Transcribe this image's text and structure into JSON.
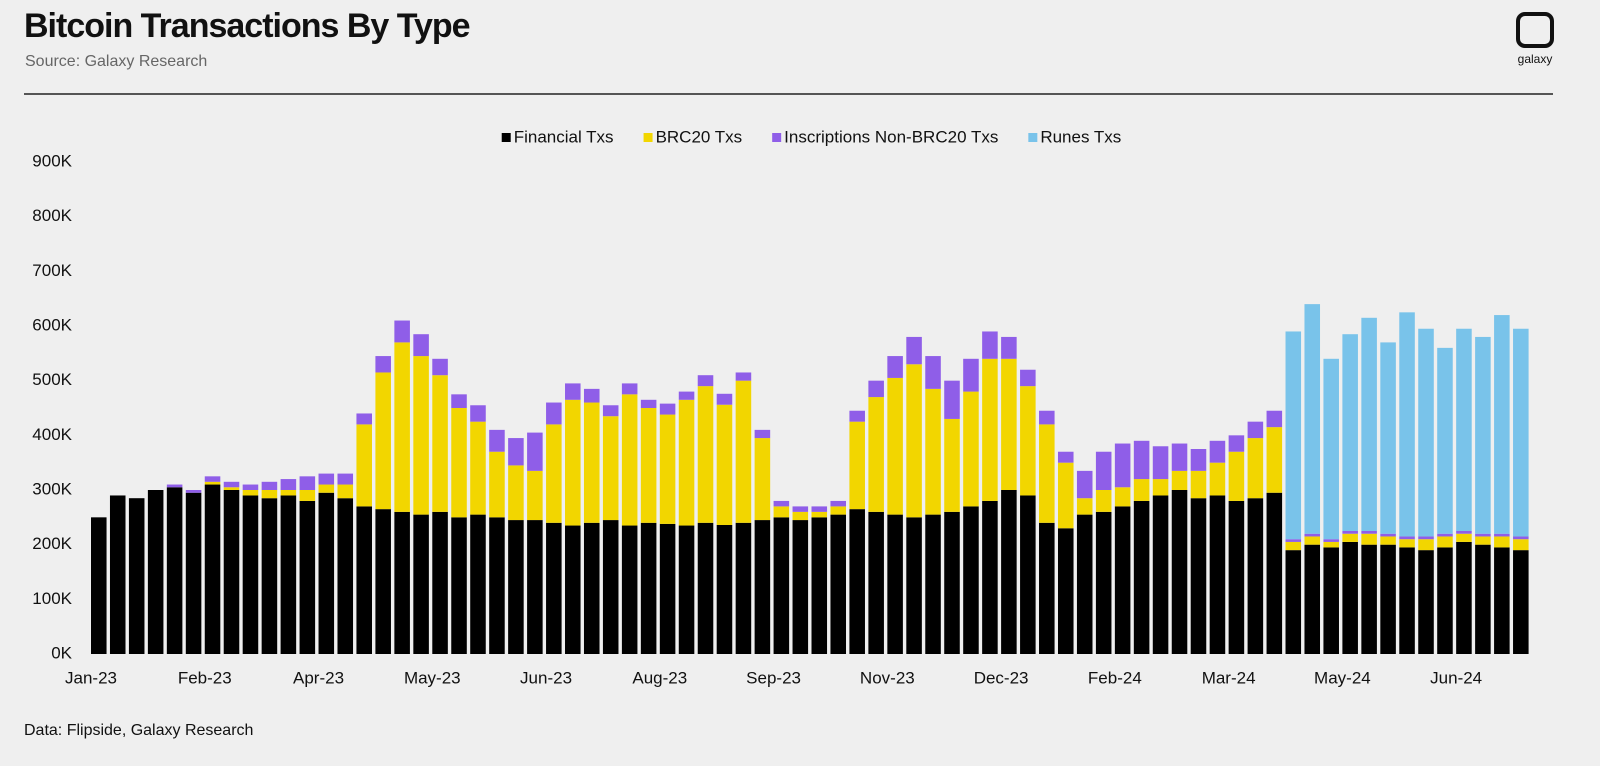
{
  "chart_data": {
    "type": "stacked-bar",
    "title": "Bitcoin Transactions By Type",
    "subtitle": "Source: Galaxy Research",
    "logo": "galaxy",
    "footer": "Data: Flipside, Galaxy Research",
    "categories": [
      "Jan-23",
      null,
      null,
      null,
      null,
      null,
      "Feb-23",
      null,
      null,
      null,
      null,
      null,
      "Apr-23",
      null,
      null,
      null,
      null,
      null,
      "May-23",
      null,
      null,
      null,
      null,
      null,
      "Jun-23",
      null,
      null,
      null,
      null,
      null,
      "Aug-23",
      null,
      null,
      null,
      null,
      null,
      "Sep-23",
      null,
      null,
      null,
      null,
      null,
      "Nov-23",
      null,
      null,
      null,
      null,
      null,
      "Dec-23",
      null,
      null,
      null,
      null,
      null,
      "Feb-24",
      null,
      null,
      null,
      null,
      null,
      "Mar-24",
      null,
      null,
      null,
      null,
      null,
      "May-24",
      null,
      null,
      null,
      null,
      null,
      "Jun-24",
      null,
      null,
      null
    ],
    "series": [
      {
        "name": "Financial Txs",
        "color": "#000000",
        "values": [
          250,
          290,
          285,
          300,
          305,
          295,
          310,
          300,
          290,
          285,
          290,
          280,
          295,
          285,
          270,
          265,
          260,
          255,
          260,
          250,
          255,
          250,
          245,
          245,
          240,
          235,
          240,
          245,
          235,
          240,
          238,
          235,
          240,
          236,
          240,
          245,
          250,
          245,
          250,
          255,
          265,
          260,
          255,
          250,
          255,
          260,
          270,
          280,
          300,
          290,
          240,
          230,
          255,
          260,
          270,
          280,
          290,
          300,
          285,
          290,
          280,
          285,
          295,
          190,
          200,
          195,
          205,
          200,
          200,
          195,
          190,
          195,
          205,
          200,
          195,
          190
        ]
      },
      {
        "name": "BRC20 Txs",
        "color": "#f2d600",
        "values": [
          0,
          0,
          0,
          0,
          0,
          0,
          5,
          5,
          10,
          15,
          10,
          20,
          15,
          25,
          150,
          250,
          310,
          290,
          250,
          200,
          170,
          120,
          100,
          90,
          180,
          230,
          220,
          190,
          240,
          210,
          200,
          230,
          250,
          220,
          260,
          150,
          20,
          15,
          10,
          15,
          160,
          210,
          250,
          280,
          230,
          170,
          210,
          260,
          240,
          200,
          180,
          120,
          30,
          40,
          35,
          40,
          30,
          35,
          50,
          60,
          90,
          110,
          120,
          15,
          15,
          10,
          15,
          20,
          15,
          15,
          20,
          20,
          15,
          15,
          20,
          20
        ]
      },
      {
        "name": "Inscriptions Non-BRC20 Txs",
        "color": "#8f5ee8",
        "values": [
          0,
          0,
          0,
          0,
          5,
          5,
          10,
          10,
          10,
          15,
          20,
          25,
          20,
          20,
          20,
          30,
          40,
          40,
          30,
          25,
          30,
          40,
          50,
          70,
          40,
          30,
          25,
          20,
          20,
          15,
          20,
          15,
          20,
          20,
          15,
          15,
          10,
          10,
          10,
          10,
          20,
          30,
          40,
          50,
          60,
          70,
          60,
          50,
          40,
          30,
          25,
          20,
          50,
          70,
          80,
          70,
          60,
          50,
          40,
          40,
          30,
          30,
          30,
          5,
          5,
          5,
          5,
          5,
          5,
          5,
          5,
          5,
          5,
          5,
          5,
          5
        ]
      },
      {
        "name": "Runes Txs",
        "color": "#79c3ea",
        "values": [
          0,
          0,
          0,
          0,
          0,
          0,
          0,
          0,
          0,
          0,
          0,
          0,
          0,
          0,
          0,
          0,
          0,
          0,
          0,
          0,
          0,
          0,
          0,
          0,
          0,
          0,
          0,
          0,
          0,
          0,
          0,
          0,
          0,
          0,
          0,
          0,
          0,
          0,
          0,
          0,
          0,
          0,
          0,
          0,
          0,
          0,
          0,
          0,
          0,
          0,
          0,
          0,
          0,
          0,
          0,
          0,
          0,
          0,
          0,
          0,
          0,
          0,
          0,
          380,
          420,
          330,
          360,
          390,
          350,
          410,
          380,
          340,
          370,
          360,
          400,
          380
        ]
      }
    ],
    "ylim": [
      0,
      900
    ],
    "yticks": [
      {
        "value": 0,
        "label": "0K"
      },
      {
        "value": 100,
        "label": "100K"
      },
      {
        "value": 200,
        "label": "200K"
      },
      {
        "value": 300,
        "label": "300K"
      },
      {
        "value": 400,
        "label": "400K"
      },
      {
        "value": 500,
        "label": "500K"
      },
      {
        "value": 600,
        "label": "600K"
      },
      {
        "value": 700,
        "label": "700K"
      },
      {
        "value": 800,
        "label": "800K"
      },
      {
        "value": 900,
        "label": "900K"
      }
    ],
    "grid": false,
    "legend": "top"
  }
}
